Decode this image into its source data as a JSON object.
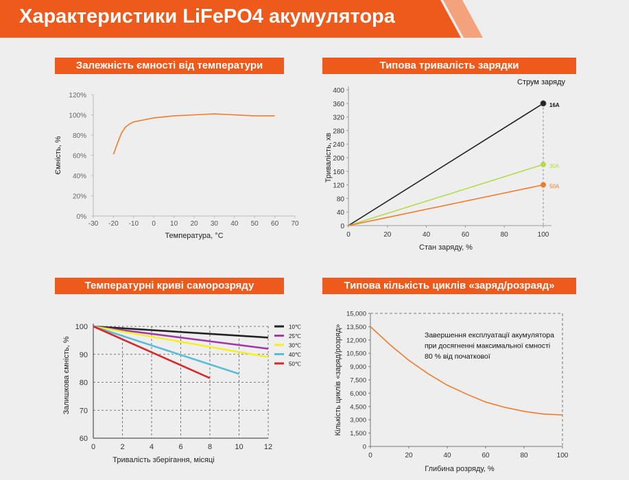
{
  "title": "Характеристики LiFePO4 акумулятора",
  "colors": {
    "accent": "#ee5a1c",
    "orange": "#f07b2a",
    "black": "#222222",
    "green": "#b4d94a",
    "purple": "#a03aa8",
    "yellow": "#f3ef2b",
    "cyan": "#5bbcd6",
    "red": "#d42a2a"
  },
  "panels": {
    "p1": {
      "heading": "Залежність ємності від температури"
    },
    "p2": {
      "heading": "Типова тривалість  зарядки",
      "legend_title": "Струм заряду"
    },
    "p3": {
      "heading": "Температурні криві саморозряду"
    },
    "p4": {
      "heading": "Типова кількість циклів «заряд/розраяд»",
      "note": [
        "Завершення експлуатації акумулятора",
        "при досягненні максимальної ємності",
        "80 % від початкової"
      ]
    }
  },
  "chart_data": [
    {
      "type": "line",
      "xlabel": "Температура, °C",
      "ylabel": "Ємність, %",
      "xlim": [
        -30,
        70
      ],
      "ylim": [
        0,
        120
      ],
      "x_ticks": [
        "-30",
        "-20",
        "-10",
        "0",
        "10",
        "20",
        "30",
        "40",
        "50",
        "60",
        "70"
      ],
      "y_ticks": [
        "0%",
        "20%",
        "40%",
        "60%",
        "80%",
        "100%",
        "120%"
      ],
      "grid": false,
      "series": [
        {
          "x": [
            -20,
            -18,
            -16,
            -14,
            -12,
            -10,
            -5,
            0,
            10,
            20,
            30,
            40,
            50,
            60
          ],
          "values": [
            61,
            72,
            82,
            88,
            91,
            93,
            95,
            97,
            99,
            100,
            101,
            100,
            99,
            99
          ]
        }
      ]
    },
    {
      "type": "line",
      "xlabel": "Стан заряду, %",
      "ylabel": "Тривалість, хв",
      "xlim": [
        0,
        100
      ],
      "ylim": [
        0,
        400
      ],
      "x_ticks": [
        "0",
        "20",
        "40",
        "60",
        "80",
        "100"
      ],
      "y_ticks": [
        "0",
        "40",
        "80",
        "120",
        "160",
        "200",
        "240",
        "280",
        "320",
        "360",
        "400"
      ],
      "grid": false,
      "legend": "end-labels",
      "series": [
        {
          "name": "16A",
          "x": [
            0,
            100
          ],
          "values": [
            0,
            360
          ]
        },
        {
          "name": "30A",
          "x": [
            0,
            100
          ],
          "values": [
            0,
            180
          ]
        },
        {
          "name": "50A",
          "x": [
            0,
            100
          ],
          "values": [
            0,
            120
          ]
        }
      ]
    },
    {
      "type": "line",
      "xlabel": "Тривалість зберігання, місяці",
      "ylabel": "Залишкова ємність, %",
      "xlim": [
        0,
        12
      ],
      "ylim": [
        60,
        100
      ],
      "x_ticks": [
        "0",
        "2",
        "4",
        "6",
        "8",
        "10",
        "12"
      ],
      "y_ticks": [
        "60",
        "70",
        "80",
        "90",
        "100"
      ],
      "grid": true,
      "legend": "top-right",
      "series": [
        {
          "name": "10℃",
          "x": [
            0,
            12
          ],
          "values": [
            100,
            96
          ]
        },
        {
          "name": "25℃",
          "x": [
            0,
            12
          ],
          "values": [
            100,
            92
          ]
        },
        {
          "name": "30℃",
          "x": [
            0,
            12
          ],
          "values": [
            100,
            89
          ]
        },
        {
          "name": "40℃",
          "x": [
            0,
            10
          ],
          "values": [
            100,
            83
          ]
        },
        {
          "name": "50℃",
          "x": [
            0,
            8
          ],
          "values": [
            100,
            81.5
          ]
        }
      ]
    },
    {
      "type": "line",
      "xlabel": "Глибина розряду, %",
      "ylabel": "Кількість циклів «заряд/розряд»",
      "xlim": [
        0,
        100
      ],
      "ylim": [
        0,
        15000
      ],
      "x_ticks": [
        "0",
        "20",
        "40",
        "60",
        "80",
        "100"
      ],
      "y_ticks": [
        "0",
        "1,500",
        "3,000",
        "4,500",
        "6,000",
        "7,500",
        "9,000",
        "10,500",
        "12,000",
        "13,500",
        "15,000"
      ],
      "grid": true,
      "series": [
        {
          "x": [
            0,
            10,
            20,
            30,
            40,
            50,
            60,
            70,
            80,
            90,
            100
          ],
          "values": [
            13500,
            11500,
            9700,
            8200,
            6900,
            5900,
            5000,
            4400,
            3950,
            3650,
            3550
          ]
        }
      ]
    }
  ]
}
